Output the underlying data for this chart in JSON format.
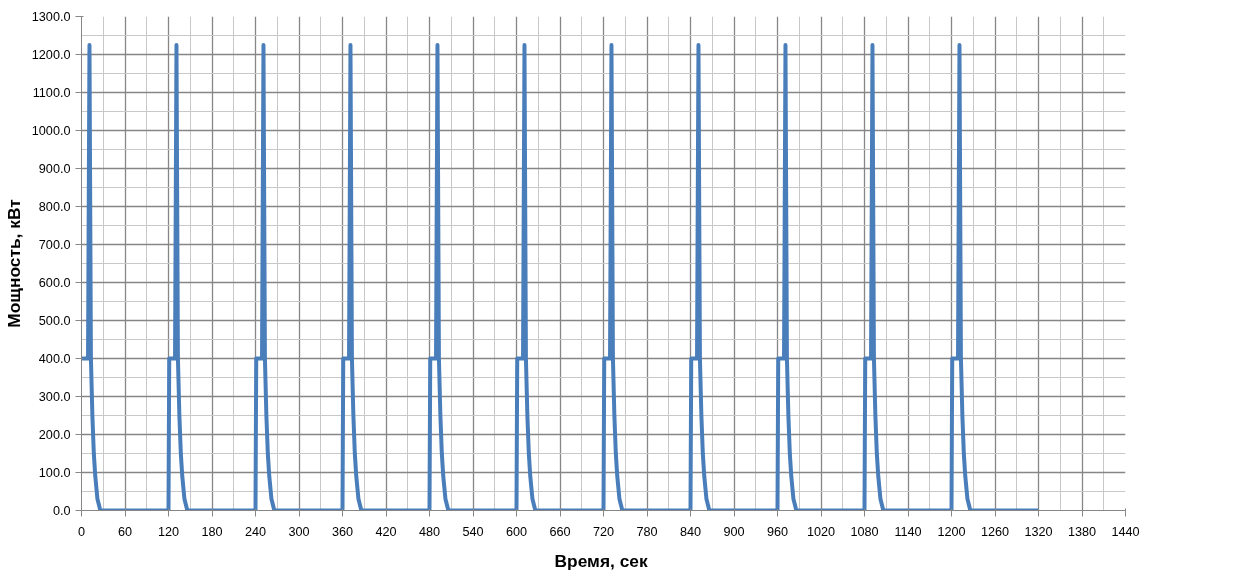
{
  "chart_data": {
    "type": "line",
    "xlabel": "Время,  сек",
    "ylabel": "Мощность, кВт",
    "x": [
      0,
      9,
      11,
      13,
      15,
      17,
      19,
      22,
      26,
      120,
      121,
      129,
      131,
      133,
      135,
      137,
      139,
      142,
      146,
      240,
      241,
      249,
      251,
      253,
      255,
      257,
      259,
      262,
      266,
      360,
      361,
      369,
      371,
      373,
      375,
      377,
      379,
      382,
      386,
      480,
      481,
      489,
      491,
      493,
      495,
      497,
      499,
      502,
      506,
      600,
      601,
      609,
      611,
      613,
      615,
      617,
      619,
      622,
      626,
      720,
      721,
      729,
      731,
      733,
      735,
      737,
      739,
      742,
      746,
      840,
      841,
      849,
      851,
      853,
      855,
      857,
      859,
      862,
      866,
      960,
      961,
      969,
      971,
      973,
      975,
      977,
      979,
      982,
      986,
      1080,
      1081,
      1089,
      1091,
      1093,
      1095,
      1097,
      1099,
      1102,
      1106,
      1200,
      1201,
      1209,
      1211,
      1213,
      1215,
      1217,
      1219,
      1222,
      1226,
      1320
    ],
    "series": [
      {
        "color": "#4a7ebb",
        "values": [
          400,
          400,
          1225,
          400,
          250,
          150,
          90,
          30,
          0,
          0,
          400,
          400,
          1225,
          400,
          250,
          150,
          90,
          30,
          0,
          0,
          400,
          400,
          1225,
          400,
          250,
          150,
          90,
          30,
          0,
          0,
          400,
          400,
          1225,
          400,
          250,
          150,
          90,
          30,
          0,
          0,
          400,
          400,
          1225,
          400,
          250,
          150,
          90,
          30,
          0,
          0,
          400,
          400,
          1225,
          400,
          250,
          150,
          90,
          30,
          0,
          0,
          400,
          400,
          1225,
          400,
          250,
          150,
          90,
          30,
          0,
          0,
          400,
          400,
          1225,
          400,
          250,
          150,
          90,
          30,
          0,
          0,
          400,
          400,
          1225,
          400,
          250,
          150,
          90,
          30,
          0,
          0,
          400,
          400,
          1225,
          400,
          250,
          150,
          90,
          30,
          0,
          0,
          400,
          400,
          1225,
          400,
          250,
          150,
          90,
          30,
          0,
          0
        ]
      }
    ],
    "xlim": [
      0,
      1440
    ],
    "xticks": [
      0,
      60,
      120,
      180,
      240,
      300,
      360,
      420,
      480,
      540,
      600,
      660,
      720,
      780,
      840,
      900,
      960,
      1020,
      1080,
      1140,
      1200,
      1260,
      1320,
      1380,
      1440
    ],
    "ylim": [
      0,
      1300
    ],
    "yticks": [
      {
        "value": 0,
        "label": "0.0"
      },
      {
        "value": 100,
        "label": "100.0"
      },
      {
        "value": 200,
        "label": "200.0"
      },
      {
        "value": 300,
        "label": "300.0"
      },
      {
        "value": 400,
        "label": "400.0"
      },
      {
        "value": 500,
        "label": "500.0"
      },
      {
        "value": 600,
        "label": "600.0"
      },
      {
        "value": 700,
        "label": "700.0"
      },
      {
        "value": 800,
        "label": "800.0"
      },
      {
        "value": 900,
        "label": "900.0"
      },
      {
        "value": 1000,
        "label": "1000.0"
      },
      {
        "value": 1100,
        "label": "1100.0"
      },
      {
        "value": 1200,
        "label": "1200.0"
      },
      {
        "value": 1300,
        "label": "1300.0"
      }
    ],
    "grid": true,
    "marker": "none",
    "line_style": "solid"
  }
}
